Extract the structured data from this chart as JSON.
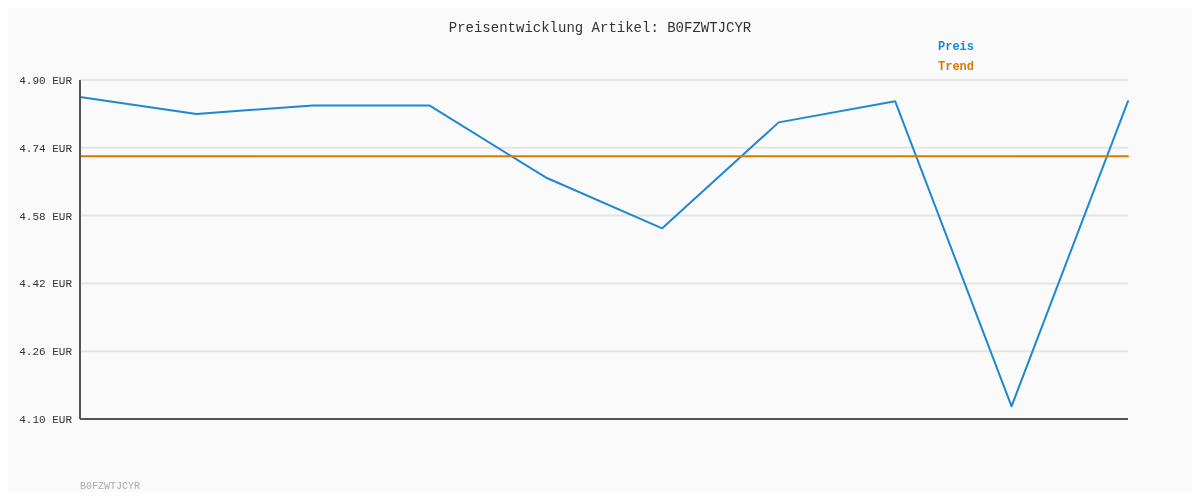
{
  "chart_data": {
    "type": "line",
    "title": "Preisentwicklung Artikel: B0FZWTJCYR",
    "categories": [
      null,
      null,
      null,
      null,
      null,
      null,
      null,
      null,
      null,
      null
    ],
    "series": [
      {
        "name": "Preis",
        "color": "#1f88d2",
        "marker": "none",
        "values": [
          4.86,
          4.82,
          4.84,
          4.84,
          4.67,
          4.55,
          4.8,
          4.85,
          4.13,
          4.85
        ]
      },
      {
        "name": "Trend",
        "color": "#d97a00",
        "marker": "none",
        "values": [
          4.72,
          4.72,
          4.72,
          4.72,
          4.72,
          4.72,
          4.72,
          4.72,
          4.72,
          4.72
        ]
      }
    ],
    "ylim": [
      4.1,
      4.9
    ],
    "yticks": [
      {
        "value": 4.1,
        "label": "4.10 EUR"
      },
      {
        "value": 4.26,
        "label": "4.26 EUR"
      },
      {
        "value": 4.42,
        "label": "4.42 EUR"
      },
      {
        "value": 4.58,
        "label": "4.58 EUR"
      },
      {
        "value": 4.74,
        "label": "4.74 EUR"
      },
      {
        "value": 4.9,
        "label": "4.90 EUR"
      }
    ],
    "tick_labels": "y",
    "grid": "y",
    "legend": "top right",
    "line_style": "solid",
    "annotations": [
      "B0FZWTJCYR"
    ]
  }
}
